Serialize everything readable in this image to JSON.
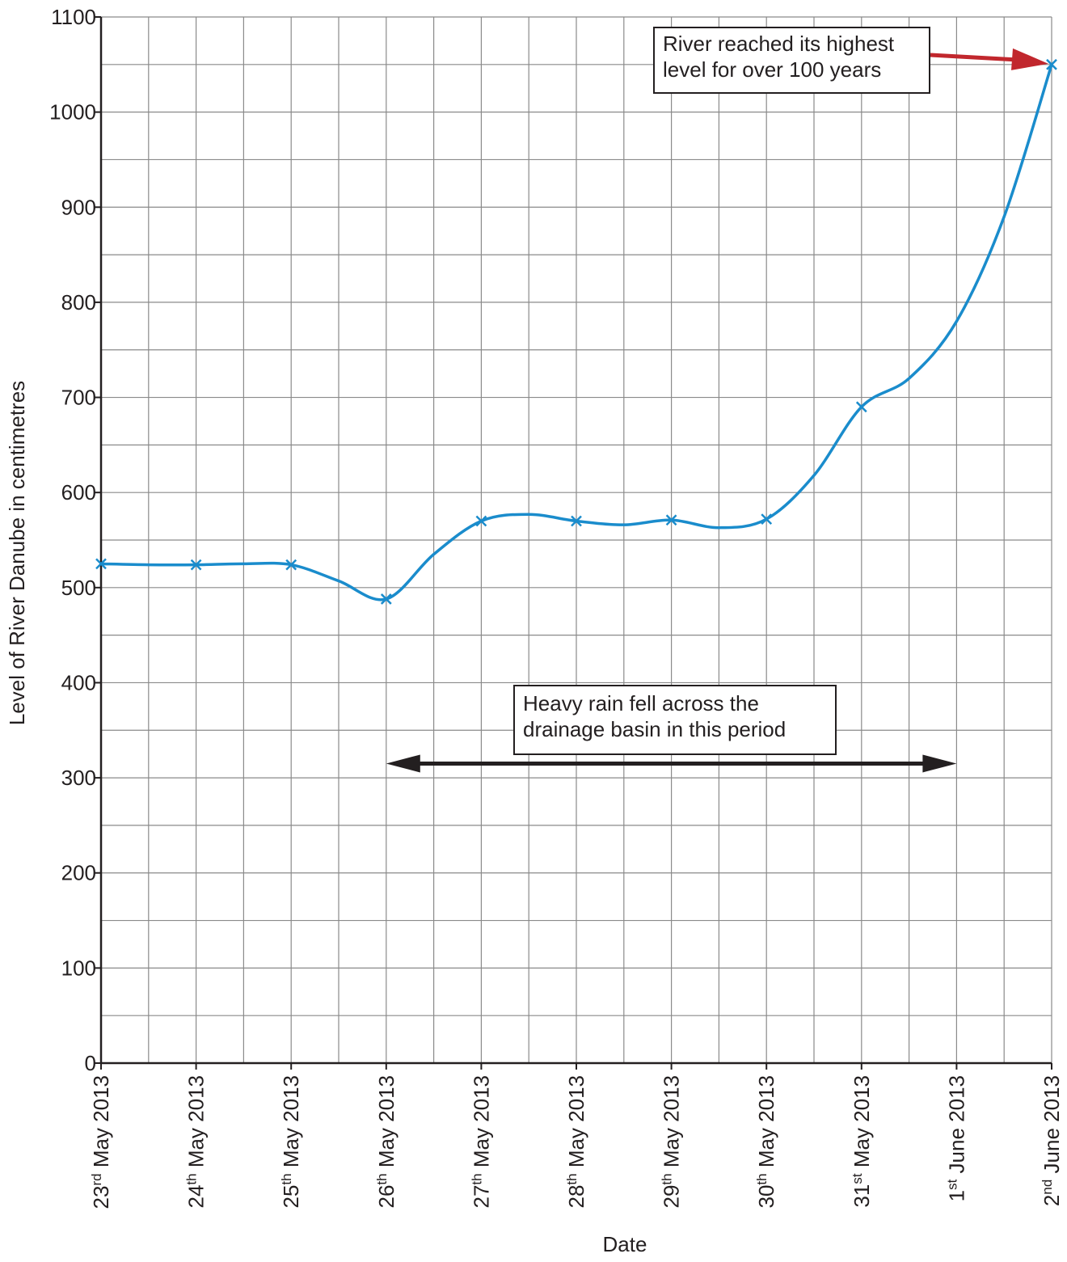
{
  "chart_data": {
    "type": "line",
    "title": "",
    "xlabel": "Date",
    "ylabel": "Level of River Danube in centimetres",
    "categories": [
      {
        "num": "23",
        "sup": "rd",
        "rest": " May 2013"
      },
      {
        "num": "24",
        "sup": "th",
        "rest": " May 2013"
      },
      {
        "num": "25",
        "sup": "th",
        "rest": " May 2013"
      },
      {
        "num": "26",
        "sup": "th",
        "rest": " May 2013"
      },
      {
        "num": "27",
        "sup": "th",
        "rest": " May 2013"
      },
      {
        "num": "28",
        "sup": "th",
        "rest": " May 2013"
      },
      {
        "num": "29",
        "sup": "th",
        "rest": " May 2013"
      },
      {
        "num": "30",
        "sup": "th",
        "rest": " May 2013"
      },
      {
        "num": "31",
        "sup": "st",
        "rest": " May 2013"
      },
      {
        "num": "1",
        "sup": "st",
        "rest": " June 2013"
      },
      {
        "num": "2",
        "sup": "nd",
        "rest": " June 2013"
      }
    ],
    "series": [
      {
        "points": [
          {
            "x": 0,
            "y": 525
          },
          {
            "x": 1,
            "y": 524
          },
          {
            "x": 2,
            "y": 524
          },
          {
            "x": 3,
            "y": 488
          },
          {
            "x": 4,
            "y": 570
          },
          {
            "x": 5,
            "y": 570
          },
          {
            "x": 6,
            "y": 571
          },
          {
            "x": 7,
            "y": 572
          },
          {
            "x": 8,
            "y": 690
          },
          {
            "x": 10,
            "y": 1050
          }
        ],
        "curve": [
          {
            "x": 0,
            "y": 525
          },
          {
            "x": 0.5,
            "y": 524
          },
          {
            "x": 1,
            "y": 524
          },
          {
            "x": 1.5,
            "y": 525
          },
          {
            "x": 2,
            "y": 524
          },
          {
            "x": 2.5,
            "y": 507
          },
          {
            "x": 3,
            "y": 488
          },
          {
            "x": 3.5,
            "y": 535
          },
          {
            "x": 4,
            "y": 570
          },
          {
            "x": 4.5,
            "y": 577
          },
          {
            "x": 5,
            "y": 570
          },
          {
            "x": 5.5,
            "y": 566
          },
          {
            "x": 6,
            "y": 571
          },
          {
            "x": 6.5,
            "y": 563
          },
          {
            "x": 7,
            "y": 572
          },
          {
            "x": 7.5,
            "y": 618
          },
          {
            "x": 8,
            "y": 690
          },
          {
            "x": 8.5,
            "y": 720
          },
          {
            "x": 9,
            "y": 780
          },
          {
            "x": 9.5,
            "y": 890
          },
          {
            "x": 10,
            "y": 1050
          }
        ],
        "color": "#1a8ccc"
      }
    ],
    "ylim": [
      0,
      1100
    ],
    "yticks": [
      0,
      100,
      200,
      300,
      400,
      500,
      600,
      700,
      800,
      900,
      1000,
      1100
    ],
    "xlim": [
      0,
      10
    ],
    "grid": true,
    "annotations": [
      {
        "lines": [
          "River reached its highest",
          "level for over 100 years"
        ],
        "arrow_color": "#c1272d",
        "arrow_to": {
          "x": 10,
          "y": 1050
        }
      },
      {
        "lines": [
          "Heavy rain fell across the",
          "drainage basin in this period"
        ],
        "arrow_color": "#231f20",
        "span": {
          "from": 3,
          "to": 9,
          "y": 315
        }
      }
    ]
  }
}
